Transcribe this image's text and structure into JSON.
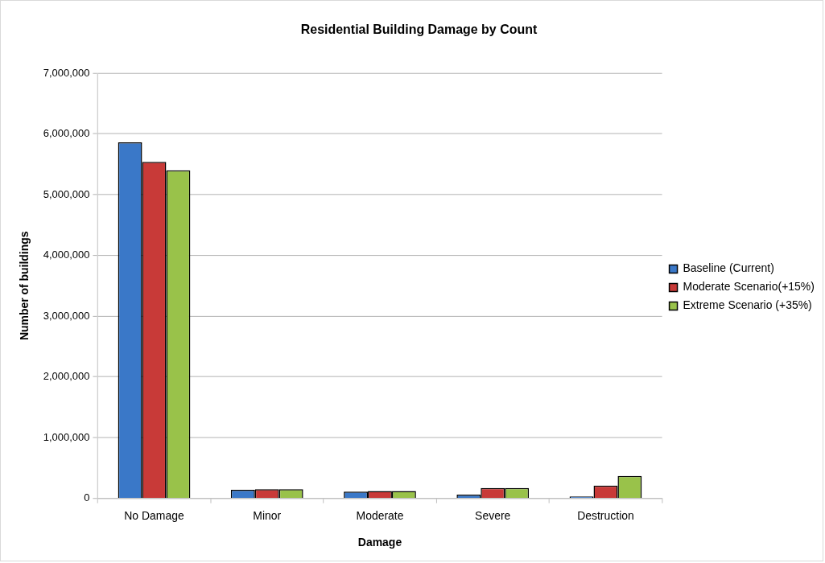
{
  "chart_data": {
    "type": "bar",
    "title": "Residential Building Damage by Count",
    "xlabel": "Damage",
    "ylabel": "Number of buildings",
    "categories": [
      "No Damage",
      "Minor",
      "Moderate",
      "Severe",
      "Destruction"
    ],
    "series": [
      {
        "name": "Baseline (Current)",
        "color": "#3a78c8",
        "values": [
          5860000,
          140000,
          110000,
          60000,
          30000
        ]
      },
      {
        "name": "Moderate Scenario(+15%)",
        "color": "#c83a38",
        "values": [
          5540000,
          150000,
          120000,
          170000,
          210000
        ]
      },
      {
        "name": "Extreme Scenario (+35%)",
        "color": "#99c24a",
        "values": [
          5400000,
          150000,
          120000,
          170000,
          370000
        ]
      }
    ],
    "ylim": [
      0,
      7000000
    ],
    "yticks": [
      0,
      {
        "value": 1000000,
        "label": "1,000,000"
      },
      {
        "value": 2000000,
        "label": "2,000,000"
      },
      {
        "value": 3000000,
        "label": "3,000,000"
      },
      {
        "value": 4000000,
        "label": "4,000,000"
      },
      {
        "value": 5000000,
        "label": "5,000,000"
      },
      {
        "value": 6000000,
        "label": "6,000,000"
      },
      {
        "value": 7000000,
        "label": "7,000,000"
      }
    ],
    "grid": "y",
    "legend": "right"
  }
}
